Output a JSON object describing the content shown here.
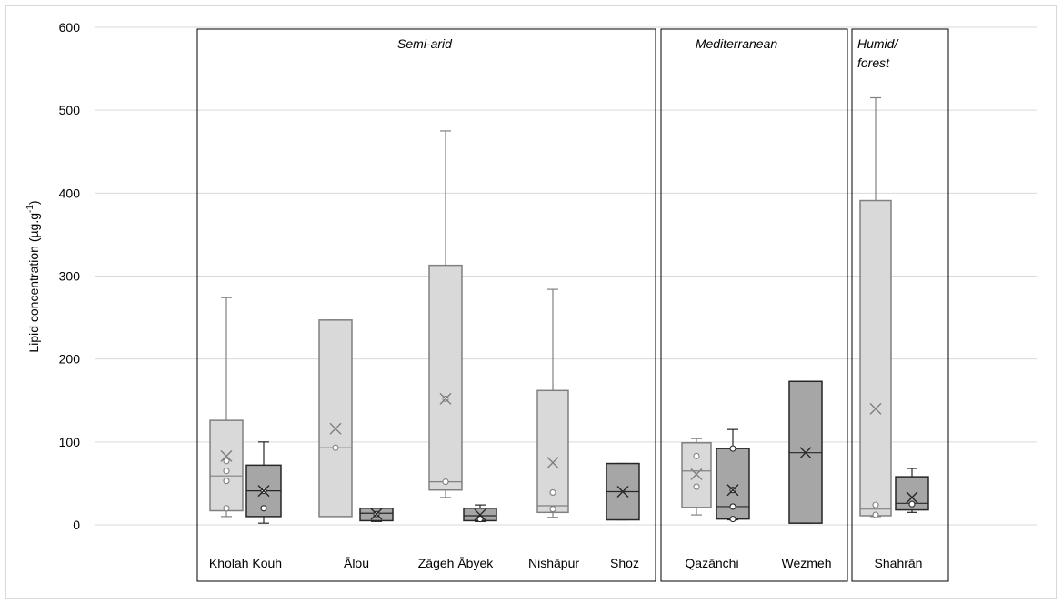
{
  "chart_data": {
    "type": "box",
    "ylabel_main": "Lipid concentration (µg.g",
    "ylabel_sup": "-1",
    "ylabel_close": ")",
    "ylim": [
      0,
      600
    ],
    "yticks": [
      0,
      100,
      200,
      300,
      400,
      500,
      600
    ],
    "grid": true,
    "series_colors": [
      "#d9d9d9",
      "#a6a6a6"
    ],
    "groups": [
      {
        "label": "Semi-arid",
        "sites": [
          "Kholah Kouh",
          "Ālou",
          "Zāgeh Ābyek",
          "Nishāpur",
          "Shoz"
        ]
      },
      {
        "label": "Mediterranean",
        "sites": [
          "Qazānchi",
          "Wezmeh"
        ]
      },
      {
        "label": "Humid/ forest",
        "label_lines": [
          "Humid/",
          "forest"
        ],
        "sites": [
          "Shahrān"
        ]
      }
    ],
    "categories": [
      "Kholah Kouh",
      "Ālou",
      "Zāgeh Ābyek",
      "Nishāpur",
      "Shoz",
      "Qazānchi",
      "Wezmeh",
      "Shahrān"
    ],
    "boxes": [
      {
        "site": "Kholah Kouh",
        "series": 1,
        "min": 10,
        "q1": 17,
        "median": 59,
        "q3": 126,
        "max": 274,
        "mean": 83,
        "points": [
          20,
          53,
          65,
          77
        ]
      },
      {
        "site": "Kholah Kouh",
        "series": 2,
        "min": 2,
        "q1": 10,
        "median": 41,
        "q3": 72,
        "max": 100,
        "mean": 41,
        "points": [
          20,
          41
        ]
      },
      {
        "site": "Ālou",
        "series": 1,
        "min": 10,
        "q1": 10,
        "median": 93,
        "q3": 247,
        "max": 247,
        "mean": 116,
        "points": [
          93
        ]
      },
      {
        "site": "Ālou",
        "series": 2,
        "min": 4,
        "q1": 5,
        "median": 14,
        "q3": 20,
        "max": 20,
        "mean": 13,
        "points": [
          13
        ]
      },
      {
        "site": "Zāgeh Ābyek",
        "series": 1,
        "min": 33,
        "q1": 42,
        "median": 52,
        "q3": 313,
        "max": 475,
        "mean": 152,
        "points": [
          52,
          152
        ]
      },
      {
        "site": "Zāgeh Ābyek",
        "series": 2,
        "min": 4,
        "q1": 5,
        "median": 11,
        "q3": 20,
        "max": 24,
        "mean": 12,
        "points": [
          7
        ]
      },
      {
        "site": "Nishāpur",
        "series": 1,
        "min": 9,
        "q1": 15,
        "median": 23,
        "q3": 162,
        "max": 284,
        "mean": 75,
        "points": [
          19,
          39
        ]
      },
      {
        "site": "Shoz",
        "series": 2,
        "min": 6,
        "q1": 6,
        "median": 40,
        "q3": 74,
        "max": 74,
        "mean": 40,
        "points": []
      },
      {
        "site": "Qazānchi",
        "series": 1,
        "min": 12,
        "q1": 21,
        "median": 65,
        "q3": 99,
        "max": 104,
        "mean": 61,
        "points": [
          46,
          83
        ]
      },
      {
        "site": "Qazānchi",
        "series": 2,
        "min": 6,
        "q1": 7,
        "median": 22,
        "q3": 92,
        "max": 115,
        "mean": 42,
        "points": [
          7,
          22,
          42,
          92
        ]
      },
      {
        "site": "Wezmeh",
        "series": 2,
        "min": 2,
        "q1": 2,
        "median": 87,
        "q3": 173,
        "max": 173,
        "mean": 87,
        "points": []
      },
      {
        "site": "Shahrān",
        "series": 1,
        "min": 10,
        "q1": 11,
        "median": 19,
        "q3": 391,
        "max": 515,
        "mean": 140,
        "points": [
          12,
          24
        ]
      },
      {
        "site": "Shahrān",
        "series": 2,
        "min": 15,
        "q1": 18,
        "median": 26,
        "q3": 58,
        "max": 68,
        "mean": 33,
        "points": [
          25
        ]
      }
    ]
  }
}
